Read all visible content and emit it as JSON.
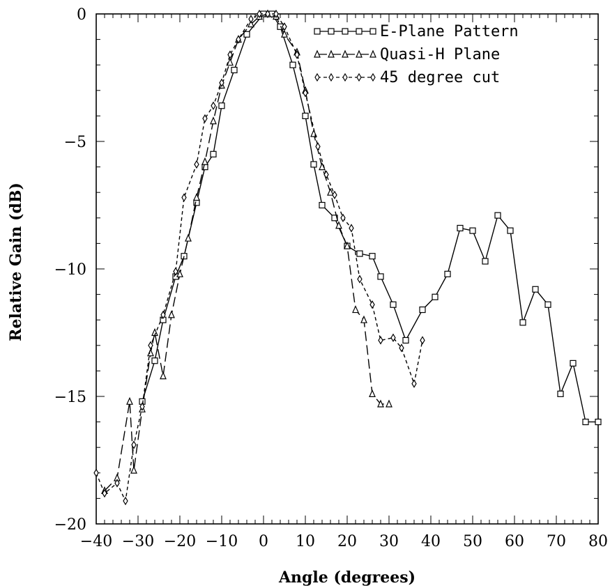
{
  "chart_data": {
    "type": "line",
    "title": "",
    "xlabel": "Angle (degrees)",
    "ylabel": "Relative Gain (dB)",
    "xlim": [
      -40,
      80
    ],
    "ylim": [
      -20,
      0
    ],
    "xticks": [
      -40,
      -30,
      -20,
      -10,
      0,
      10,
      20,
      30,
      40,
      50,
      60,
      70,
      80
    ],
    "yticks": [
      0,
      -5,
      -10,
      -15,
      -20
    ],
    "grid": false,
    "legend_position": "top-right",
    "series": [
      {
        "name": "E-Plane Pattern",
        "marker": "square",
        "line": "solid",
        "x": [
          -29,
          -26,
          -24,
          -21,
          -19,
          -16,
          -14,
          -12,
          -10,
          -7,
          -4,
          0,
          2,
          4,
          7,
          10,
          12,
          14,
          17,
          20,
          23,
          26,
          28,
          31,
          34,
          38,
          41,
          44,
          47,
          50,
          53,
          56,
          59,
          62,
          65,
          68,
          71,
          74,
          77,
          80
        ],
        "y": [
          -15.2,
          -13.6,
          -12.0,
          -10.3,
          -9.5,
          -7.4,
          -6.0,
          -5.5,
          -3.6,
          -2.2,
          -0.8,
          0.0,
          0.0,
          -0.5,
          -2.0,
          -4.0,
          -5.9,
          -7.5,
          -8.0,
          -9.1,
          -9.4,
          -9.5,
          -10.3,
          -11.4,
          -12.8,
          -11.6,
          -11.1,
          -10.2,
          -8.4,
          -8.5,
          -9.7,
          -7.9,
          -8.5,
          -12.1,
          -10.8,
          -11.4,
          -14.9,
          -13.7,
          -16.0,
          -16.0
        ]
      },
      {
        "name": "Quasi-H Plane",
        "marker": "triangle",
        "line": "long-dash",
        "x": [
          -38,
          -35,
          -32,
          -31,
          -29,
          -27,
          -26,
          -24,
          -22,
          -20,
          -18,
          -16,
          -14,
          -12,
          -10,
          -8,
          -6,
          -3,
          -1,
          1,
          3,
          5,
          8,
          10,
          12,
          14,
          16,
          18,
          20,
          22,
          24,
          26,
          28,
          30
        ],
        "y": [
          -18.7,
          -18.2,
          -15.2,
          -17.9,
          -15.5,
          -13.3,
          -12.5,
          -14.2,
          -11.8,
          -10.2,
          -8.8,
          -7.2,
          -5.8,
          -4.2,
          -2.8,
          -1.9,
          -1.0,
          -0.4,
          -0.1,
          0.0,
          -0.1,
          -0.8,
          -1.5,
          -3.0,
          -4.7,
          -6.0,
          -7.0,
          -8.3,
          -9.1,
          -11.6,
          -12.0,
          -14.9,
          -15.3,
          -15.3
        ]
      },
      {
        "name": "45 degree cut",
        "marker": "diamond",
        "line": "short-dash",
        "x": [
          -40,
          -38,
          -35,
          -33,
          -31,
          -29,
          -27,
          -24,
          -21,
          -19,
          -16,
          -14,
          -12,
          -10,
          -8,
          -6,
          -3,
          -1,
          1,
          3,
          5,
          8,
          10,
          13,
          15,
          17,
          19,
          21,
          23,
          26,
          28,
          31,
          33,
          36,
          38
        ],
        "y": [
          -18.0,
          -18.8,
          -18.4,
          -19.1,
          -16.9,
          -15.4,
          -13.0,
          -11.8,
          -10.1,
          -7.2,
          -5.9,
          -4.1,
          -3.6,
          -2.7,
          -1.6,
          -1.0,
          -0.2,
          0.0,
          0.0,
          0.0,
          -0.5,
          -1.6,
          -3.1,
          -5.2,
          -6.3,
          -7.1,
          -8.0,
          -8.4,
          -10.4,
          -11.4,
          -12.8,
          -12.7,
          -13.1,
          -14.5,
          -12.8
        ]
      }
    ]
  }
}
